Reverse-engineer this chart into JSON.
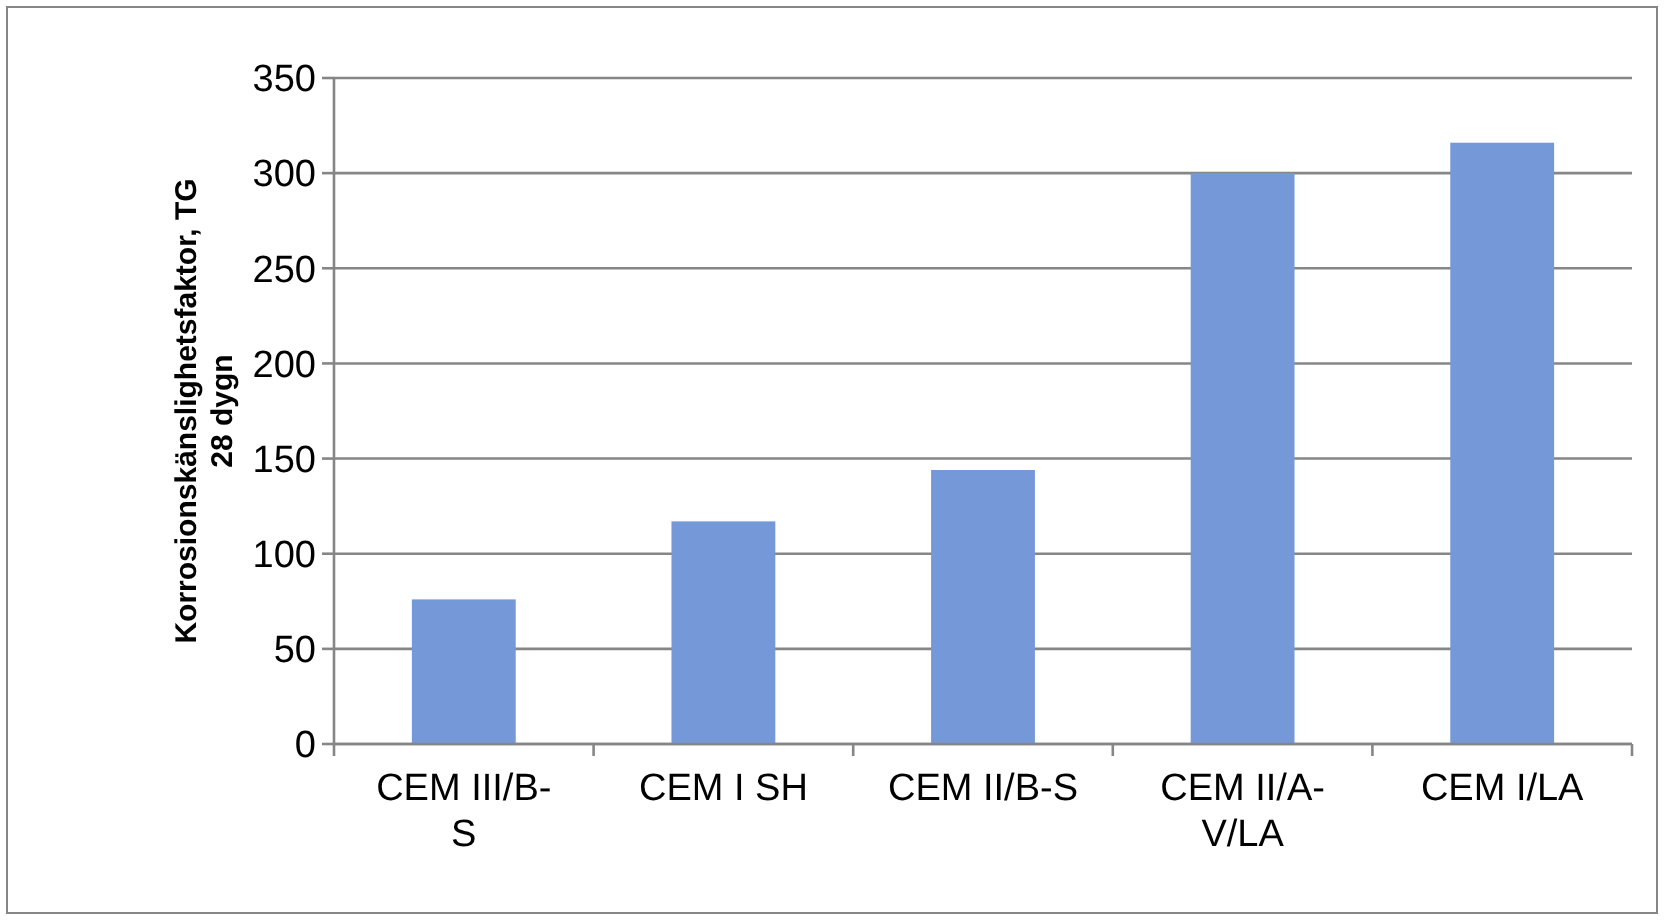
{
  "chart_data": {
    "type": "bar",
    "ylabel": "Korrosionskänslighetsfaktor, TG\n28 dygn",
    "categories": [
      "CEM III/B-S",
      "CEM I SH",
      "CEM II/B-S",
      "CEM II/A-V/LA",
      "CEM I/LA"
    ],
    "values": [
      76,
      117,
      144,
      300,
      316
    ],
    "color": "#7599d8",
    "ylim": [
      0,
      350
    ],
    "yticks": [
      0,
      50,
      100,
      150,
      200,
      250,
      300,
      350
    ],
    "grid": "y"
  }
}
